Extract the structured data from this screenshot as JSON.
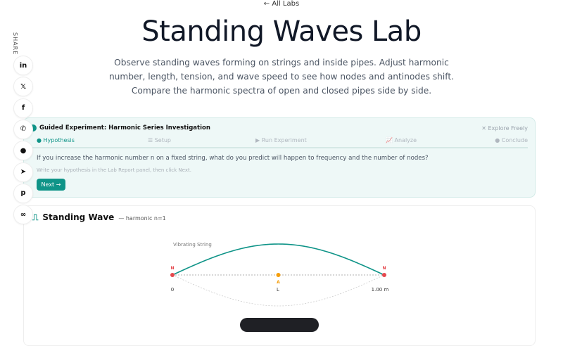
{
  "nav": {
    "back_label": "← All Labs"
  },
  "header": {
    "title": "Standing Waves Lab",
    "description": "Observe standing waves forming on strings and inside pipes. Adjust harmonic number, length, tension, and wave speed to see how nodes and antinodes shift. Compare the harmonic spectra of open and closed pipes side by side."
  },
  "share": {
    "label": "SHARE",
    "items": [
      {
        "icon": "linkedin-icon",
        "glyph": "in"
      },
      {
        "icon": "x-icon",
        "glyph": "𝕏"
      },
      {
        "icon": "facebook-icon",
        "glyph": "f"
      },
      {
        "icon": "whatsapp-icon",
        "glyph": "✆"
      },
      {
        "icon": "reddit-icon",
        "glyph": "●"
      },
      {
        "icon": "telegram-icon",
        "glyph": "➤"
      },
      {
        "icon": "pinterest-icon",
        "glyph": "p"
      },
      {
        "icon": "link-icon",
        "glyph": "∞"
      }
    ]
  },
  "guided": {
    "title": "Guided Experiment: Harmonic Series Investigation",
    "explore": "✕ Explore Freely",
    "steps": [
      {
        "label": "Hypothesis",
        "icon": "lightbulb-icon"
      },
      {
        "label": "Setup",
        "icon": "sliders-icon"
      },
      {
        "label": "Run Experiment",
        "icon": "play-icon"
      },
      {
        "label": "Analyze",
        "icon": "chart-icon"
      },
      {
        "label": "Conclude",
        "icon": "check-circle-icon"
      }
    ],
    "active_step": 0,
    "question": "If you increase the harmonic number n on a fixed string, what do you predict will happen to frequency and the number of nodes?",
    "hint": "Write your hypothesis in the Lab Report panel, then click Next.",
    "next_label": "Next →"
  },
  "wave": {
    "title": "Standing Wave",
    "subtitle": "— harmonic n=1",
    "plot_label": "Vibrating String",
    "node_label": "N",
    "antinode_label": "A",
    "x_start": "0",
    "x_mid": "L",
    "x_end": "1.00 m",
    "harmonic": 1,
    "colors": {
      "wave": "#0f9488",
      "node": "#e5484d",
      "antinode": "#f59e0b"
    }
  }
}
